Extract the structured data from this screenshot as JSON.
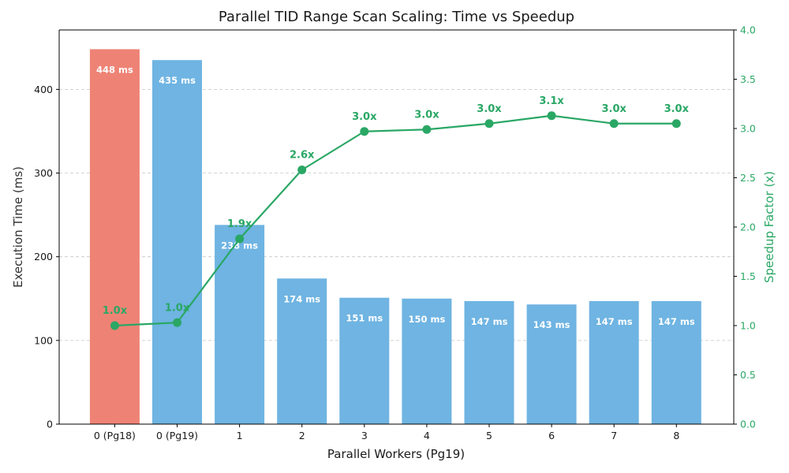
{
  "chart_data": {
    "type": "bar",
    "title": "Parallel TID Range Scan Scaling: Time vs Speedup",
    "xlabel": "Parallel Workers (Pg19)",
    "ylabel": "Execution Time (ms)",
    "y2label": "Speedup Factor (x)",
    "ylim": [
      0,
      471
    ],
    "y2lim": [
      0,
      4
    ],
    "yticks": [
      0,
      100,
      200,
      300,
      400
    ],
    "y2ticks": [
      0.0,
      0.5,
      1.0,
      1.5,
      2.0,
      2.5,
      3.0,
      3.5,
      4.0
    ],
    "grid": "horizontal dashed",
    "categories": [
      "0 (Pg18)",
      "0 (Pg19)",
      "1",
      "2",
      "3",
      "4",
      "5",
      "6",
      "7",
      "8"
    ],
    "series": [
      {
        "name": "Execution Time",
        "type": "bar",
        "axis": "left",
        "values": [
          448,
          435,
          238,
          174,
          151,
          150,
          147,
          143,
          147,
          147
        ],
        "labels": [
          "448 ms",
          "435 ms",
          "238 ms",
          "174 ms",
          "151 ms",
          "150 ms",
          "147 ms",
          "143 ms",
          "147 ms",
          "147 ms"
        ],
        "colors": [
          "#ee8375",
          "#6fb4e2",
          "#6fb4e2",
          "#6fb4e2",
          "#6fb4e2",
          "#6fb4e2",
          "#6fb4e2",
          "#6fb4e2",
          "#6fb4e2",
          "#6fb4e2"
        ]
      },
      {
        "name": "Speedup",
        "type": "line",
        "axis": "right",
        "values": [
          1.0,
          1.03,
          1.88,
          2.58,
          2.97,
          2.99,
          3.05,
          3.13,
          3.05,
          3.05
        ],
        "labels": [
          "1.0x",
          "1.0x",
          "1.9x",
          "2.6x",
          "3.0x",
          "3.0x",
          "3.0x",
          "3.1x",
          "3.0x",
          "3.0x"
        ],
        "color": "#2aa765"
      }
    ]
  }
}
